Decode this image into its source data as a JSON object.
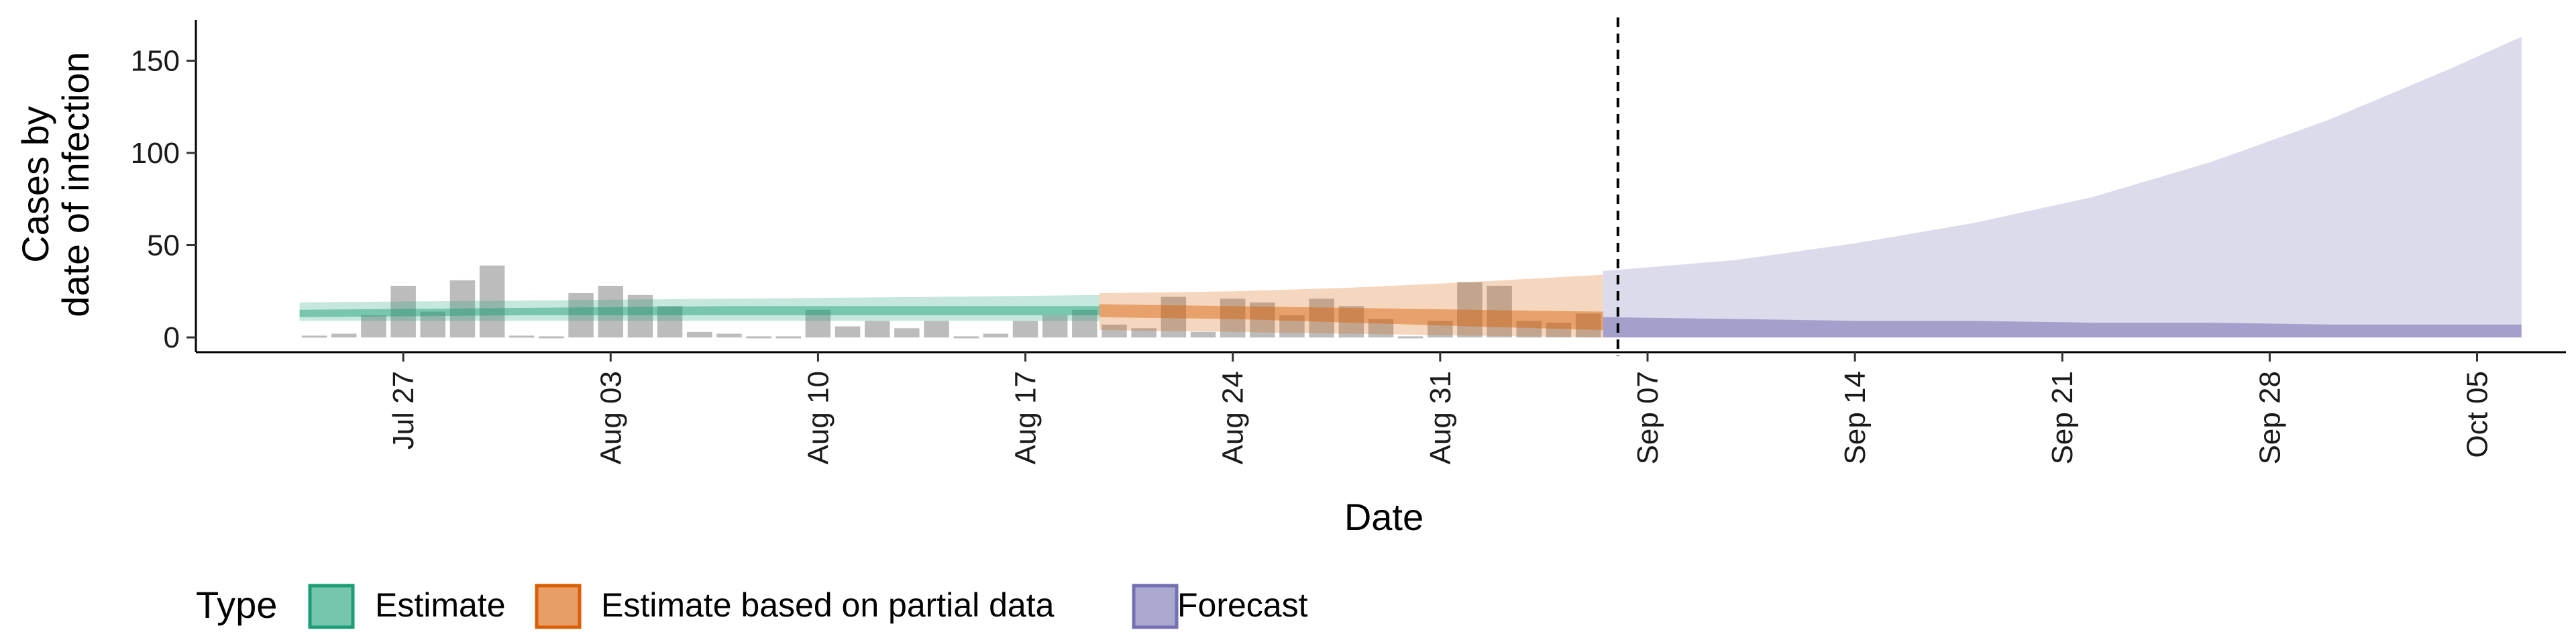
{
  "chart_data": {
    "type": "area",
    "xlabel": "Date",
    "ylabel_lines": [
      "Cases by",
      "date of infection"
    ],
    "ylim": [
      -8,
      172
    ],
    "y_ticks": [
      0,
      50,
      100,
      150
    ],
    "x_ticks": [
      {
        "date": "2020-07-27",
        "label": "Jul 27"
      },
      {
        "date": "2020-08-03",
        "label": "Aug 03"
      },
      {
        "date": "2020-08-10",
        "label": "Aug 10"
      },
      {
        "date": "2020-08-17",
        "label": "Aug 17"
      },
      {
        "date": "2020-08-24",
        "label": "Aug 24"
      },
      {
        "date": "2020-08-31",
        "label": "Aug 31"
      },
      {
        "date": "2020-09-07",
        "label": "Sep 07"
      },
      {
        "date": "2020-09-14",
        "label": "Sep 14"
      },
      {
        "date": "2020-09-21",
        "label": "Sep 21"
      },
      {
        "date": "2020-09-28",
        "label": "Sep 28"
      },
      {
        "date": "2020-10-05",
        "label": "Oct 05"
      }
    ],
    "xlim": [
      "2020-07-20",
      "2020-10-08"
    ],
    "vline_date": "2020-09-06",
    "grid": false,
    "legend_position": "bottom-left",
    "legend_title": "Type",
    "colors": {
      "estimate": "#1b9e77",
      "partial": "#d95f02",
      "forecast": "#7570b3",
      "bars": "#a6a6a6"
    },
    "observed_cases": {
      "dates": [
        "2020-07-24",
        "2020-07-25",
        "2020-07-26",
        "2020-07-27",
        "2020-07-28",
        "2020-07-29",
        "2020-07-30",
        "2020-07-31",
        "2020-08-01",
        "2020-08-02",
        "2020-08-03",
        "2020-08-04",
        "2020-08-05",
        "2020-08-06",
        "2020-08-07",
        "2020-08-08",
        "2020-08-09",
        "2020-08-10",
        "2020-08-11",
        "2020-08-12",
        "2020-08-13",
        "2020-08-14",
        "2020-08-15",
        "2020-08-16",
        "2020-08-17",
        "2020-08-18",
        "2020-08-19",
        "2020-08-20",
        "2020-08-21",
        "2020-08-22",
        "2020-08-23",
        "2020-08-24",
        "2020-08-25",
        "2020-08-26",
        "2020-08-27",
        "2020-08-28",
        "2020-08-29",
        "2020-08-30",
        "2020-08-31",
        "2020-09-01",
        "2020-09-02",
        "2020-09-03",
        "2020-09-04",
        "2020-09-05"
      ],
      "values": [
        1,
        2,
        12,
        28,
        14,
        31,
        39,
        1,
        0,
        24,
        28,
        23,
        17,
        3,
        2,
        0,
        0,
        15,
        6,
        9,
        5,
        9,
        0,
        2,
        9,
        12,
        15,
        7,
        5,
        22,
        3,
        21,
        19,
        12,
        21,
        17,
        10,
        0,
        9,
        30,
        28,
        9,
        8,
        13
      ]
    },
    "series": [
      {
        "name": "Estimate",
        "dates": [
          "2020-07-24",
          "2020-07-31",
          "2020-08-07",
          "2020-08-14",
          "2020-08-19"
        ],
        "median": [
          13,
          14,
          14,
          15,
          15
        ],
        "inner_lower": [
          11,
          12,
          12,
          12,
          12
        ],
        "inner_upper": [
          15,
          16,
          17,
          17,
          17
        ],
        "outer_lower": [
          9,
          9,
          9,
          9,
          9
        ],
        "outer_upper": [
          19,
          20,
          21,
          22,
          23
        ]
      },
      {
        "name": "Estimate based on partial data",
        "dates": [
          "2020-08-20",
          "2020-08-24",
          "2020-08-28",
          "2020-09-01",
          "2020-09-05"
        ],
        "median": [
          15,
          14,
          12,
          10,
          9
        ],
        "inner_lower": [
          11,
          10,
          8,
          6,
          4
        ],
        "inner_upper": [
          18,
          17,
          16,
          15,
          14
        ],
        "outer_lower": [
          4,
          3,
          2,
          1,
          0
        ],
        "outer_upper": [
          24,
          25,
          27,
          30,
          34
        ]
      },
      {
        "name": "Forecast",
        "dates": [
          "2020-09-06",
          "2020-09-10",
          "2020-09-14",
          "2020-09-18",
          "2020-09-22",
          "2020-09-26",
          "2020-09-30",
          "2020-10-04",
          "2020-10-06"
        ],
        "median": [
          6,
          6,
          5,
          5,
          5,
          4,
          4,
          4,
          4
        ],
        "inner_lower": [
          0,
          0,
          0,
          0,
          0,
          0,
          0,
          0,
          0
        ],
        "inner_upper": [
          11,
          10,
          9,
          9,
          8,
          8,
          7,
          7,
          7
        ],
        "outer_lower": [
          0,
          0,
          0,
          0,
          0,
          0,
          0,
          0,
          0
        ],
        "outer_upper": [
          36,
          42,
          51,
          62,
          76,
          95,
          118,
          145,
          163
        ]
      }
    ]
  }
}
